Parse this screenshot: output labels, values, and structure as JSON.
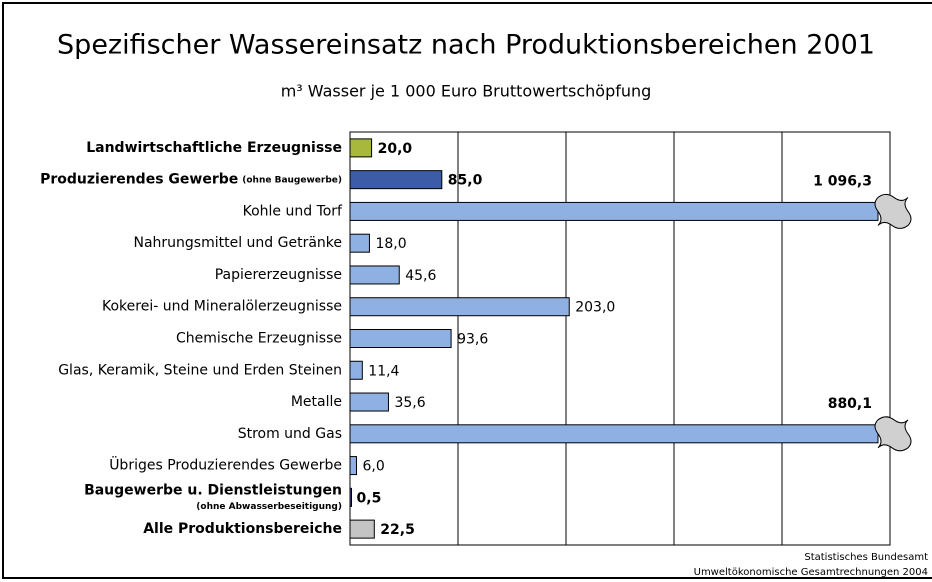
{
  "chart_data": {
    "type": "barh",
    "title": "Spezifischer Wassereinsatz nach Produktionsbereichen 2001",
    "subtitle": "m³ Wasser je 1 000 Euro Bruttowertschöpfung",
    "categories": [
      "Landwirtschaftliche Erzeugnisse",
      "Produzierendes Gewerbe",
      "Kohle und Torf",
      "Nahrungsmittel und Getränke",
      "Papiererzeugnisse",
      "Kokerei- und Mineralölerzeugnisse",
      "Chemische Erzeugnisse",
      "Glas, Keramik, Steine und Erden Steinen",
      "Metalle",
      "Strom und Gas",
      "Übriges Produzierendes Gewerbe",
      "Baugewerbe u. Dienstleistungen",
      "Alle Produktionsbereiche"
    ],
    "category_notes": [
      null,
      "(ohne Baugewerbe)",
      null,
      null,
      null,
      null,
      null,
      null,
      null,
      null,
      null,
      "(ohne Abwasserbeseitigung)",
      null
    ],
    "values": [
      20.0,
      85.0,
      1096.3,
      18.0,
      45.6,
      203.0,
      93.6,
      11.4,
      35.6,
      880.1,
      6.0,
      0.5,
      22.5
    ],
    "value_labels": [
      "20,0",
      "85,0",
      "1 096,3",
      "18,0",
      "45,6",
      "203,0",
      "93,6",
      "11,4",
      "35,6",
      "880,1",
      "6,0",
      "0,5",
      "22,5"
    ],
    "colors": [
      "#a8b83c",
      "#3c5ca8",
      "#8fb0e2",
      "#8fb0e2",
      "#8fb0e2",
      "#8fb0e2",
      "#8fb0e2",
      "#8fb0e2",
      "#8fb0e2",
      "#8fb0e2",
      "#8fb0e2",
      "#3c5ca8",
      "#c4c4c4"
    ],
    "xlim": [
      0,
      500
    ],
    "xticks": [
      0,
      100,
      200,
      300,
      400,
      500
    ],
    "grid": true,
    "source": [
      "Statistisches Bundesamt",
      "Umweltökonomische Gesamtrechnungen 2004"
    ]
  }
}
